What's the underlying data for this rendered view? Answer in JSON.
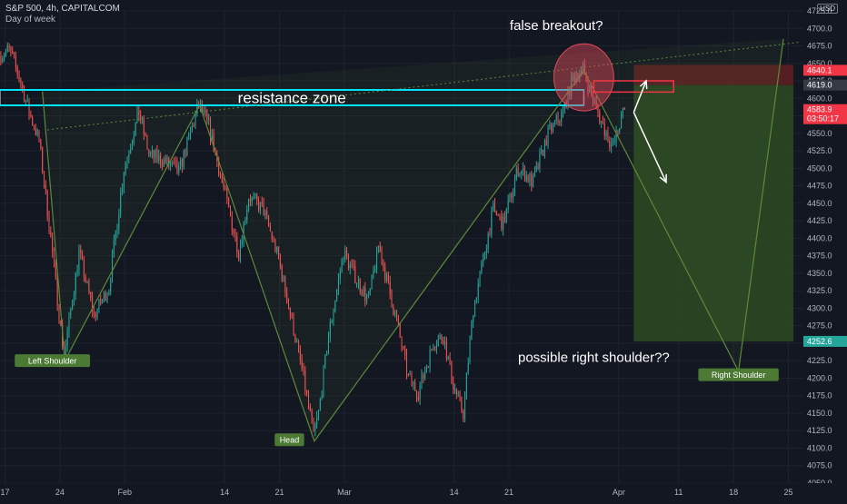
{
  "header": {
    "title": "S&P 500, 4h, CAPITALCOM",
    "subtitle": "Day of week",
    "currency": "USD"
  },
  "annotations": {
    "resistance": "resistance zone",
    "false_breakout": "false breakout?",
    "right_shoulder_q": "possible right shoulder??"
  },
  "pattern_labels": [
    {
      "text": "Left Shoulder",
      "x": 10.5,
      "y": 4225
    },
    {
      "text": "Head",
      "x": 58.0,
      "y": 4112
    },
    {
      "text": "Right Shoulder",
      "x": 148.0,
      "y": 4205
    }
  ],
  "price_tags": [
    {
      "label": "4640.1",
      "value": 4640.1,
      "color": "#f23645"
    },
    {
      "label": "4619.0",
      "value": 4619.0,
      "color": "#363a45"
    },
    {
      "label": "4583.9\n03:50:17",
      "value": 4583.9,
      "color": "#f23645"
    },
    {
      "label": "4252.6",
      "value": 4252.6,
      "color": "#26a69a"
    }
  ],
  "colors": {
    "background": "#131722",
    "up": "#26a69a",
    "down": "#ef5350",
    "resistance": "#00e5ff",
    "pattern": "#5d8a3a",
    "target_zone": "#2d4a22",
    "stop_zone": "#5c1f22"
  },
  "chart_data": {
    "type": "candlestick",
    "title": "S&P 500, 4h, CAPITALCOM",
    "ylim": [
      4050,
      4725
    ],
    "xlim": [
      0,
      161
    ],
    "y_ticks": [
      4050,
      4075,
      4100,
      4125,
      4150,
      4175,
      4200,
      4225,
      4250,
      4275,
      4300,
      4325,
      4350,
      4375,
      4400,
      4425,
      4450,
      4475,
      4500,
      4525,
      4550,
      4575,
      4600,
      4625,
      4650,
      4675,
      4700,
      4725
    ],
    "x_ticks": [
      {
        "label": "17",
        "x": 1
      },
      {
        "label": "24",
        "x": 12
      },
      {
        "label": "Feb",
        "x": 25
      },
      {
        "label": "14",
        "x": 45
      },
      {
        "label": "21",
        "x": 56
      },
      {
        "label": "Mar",
        "x": 69
      },
      {
        "label": "14",
        "x": 91
      },
      {
        "label": "21",
        "x": 102
      },
      {
        "label": "Apr",
        "x": 124
      },
      {
        "label": "11",
        "x": 136
      },
      {
        "label": "18",
        "x": 147
      },
      {
        "label": "25",
        "x": 158
      }
    ],
    "keypoints": [
      [
        0,
        4660
      ],
      [
        2,
        4670
      ],
      [
        4,
        4630
      ],
      [
        6,
        4580
      ],
      [
        8,
        4540
      ],
      [
        10,
        4420
      ],
      [
        13,
        4230
      ],
      [
        16,
        4380
      ],
      [
        19,
        4290
      ],
      [
        22,
        4330
      ],
      [
        25,
        4500
      ],
      [
        28,
        4580
      ],
      [
        30,
        4520
      ],
      [
        33,
        4510
      ],
      [
        36,
        4495
      ],
      [
        40,
        4590
      ],
      [
        42,
        4560
      ],
      [
        45,
        4470
      ],
      [
        48,
        4380
      ],
      [
        50,
        4460
      ],
      [
        53,
        4440
      ],
      [
        56,
        4370
      ],
      [
        59,
        4270
      ],
      [
        61,
        4200
      ],
      [
        63,
        4120
      ],
      [
        64,
        4150
      ],
      [
        66,
        4260
      ],
      [
        69,
        4380
      ],
      [
        71,
        4350
      ],
      [
        74,
        4310
      ],
      [
        76,
        4390
      ],
      [
        78,
        4330
      ],
      [
        80,
        4270
      ],
      [
        82,
        4200
      ],
      [
        84,
        4180
      ],
      [
        87,
        4250
      ],
      [
        89,
        4260
      ],
      [
        91,
        4190
      ],
      [
        93,
        4150
      ],
      [
        95,
        4300
      ],
      [
        97,
        4370
      ],
      [
        99,
        4440
      ],
      [
        101,
        4420
      ],
      [
        104,
        4500
      ],
      [
        107,
        4480
      ],
      [
        110,
        4550
      ],
      [
        113,
        4580
      ],
      [
        115,
        4630
      ],
      [
        117,
        4640
      ],
      [
        119,
        4600
      ],
      [
        121,
        4560
      ],
      [
        123,
        4530
      ],
      [
        125,
        4580
      ]
    ],
    "resistance_zone": [
      4590,
      4612
    ],
    "neckline": {
      "x": [
        9.5,
        160
      ],
      "y": [
        4555,
        4680
      ]
    },
    "pattern_path": {
      "x": [
        8.5,
        13,
        40,
        63,
        117,
        148,
        157
      ],
      "y": [
        4610,
        4225,
        4590,
        4110,
        4640,
        4210,
        4685
      ]
    },
    "trade_box": {
      "x": [
        127,
        159
      ],
      "entry": 4619,
      "stop": 4648,
      "target": 4252.6
    },
    "arrows": [
      {
        "x": [
          127,
          129.5
        ],
        "y": [
          4580,
          4625
        ]
      },
      {
        "x": [
          127,
          133.5
        ],
        "y": [
          4580,
          4480
        ]
      }
    ],
    "circle": {
      "x": 117,
      "y": 4630,
      "rx": 6,
      "ry": 48
    }
  }
}
